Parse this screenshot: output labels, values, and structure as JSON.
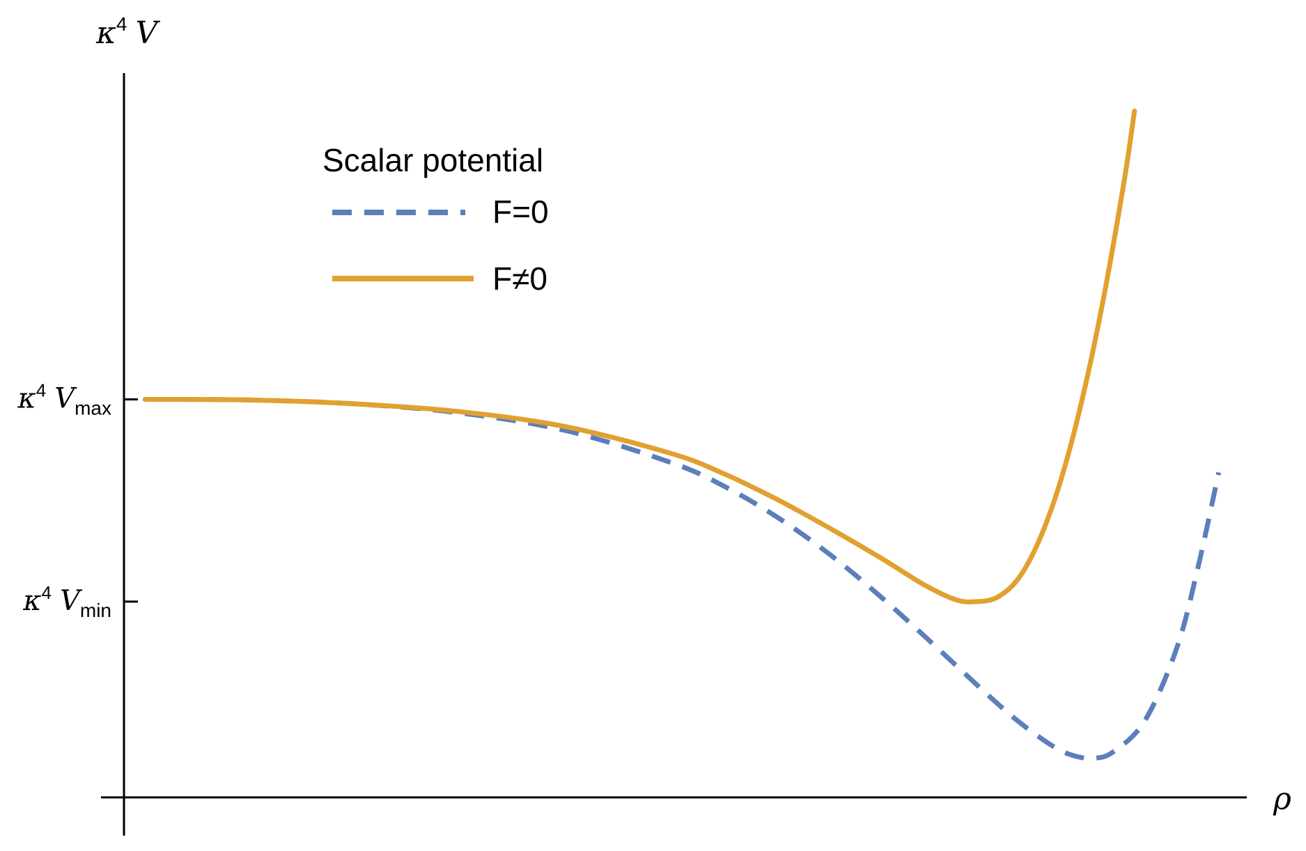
{
  "chart_data": {
    "type": "line",
    "ylabel": {
      "base": "κ",
      "sup": "4",
      "var": "V"
    },
    "xlabel": "ρ",
    "yticks": [
      {
        "base": "κ",
        "sup": "4",
        "var": "V",
        "sub": "max",
        "value": 0.55
      },
      {
        "base": "κ",
        "sup": "4",
        "var": "V",
        "sub": "min",
        "value": 0.24
      }
    ],
    "ylim": [
      -0.06,
      1.05
    ],
    "xlim": [
      -0.02,
      1.05
    ],
    "grid": false,
    "legend": {
      "title": "Scalar potential",
      "placement": "top-left",
      "entries": [
        {
          "label": "F=0",
          "style": "dashed",
          "color": "#5b7fbb"
        },
        {
          "label": "F≠0",
          "style": "solid",
          "color": "#e1a02f"
        }
      ]
    },
    "series": [
      {
        "name": "F=0",
        "color": "#5b7fbb",
        "dashed": true,
        "points": [
          [
            0.0,
            0.55
          ],
          [
            0.1,
            0.549
          ],
          [
            0.2,
            0.543
          ],
          [
            0.3,
            0.529
          ],
          [
            0.4,
            0.502
          ],
          [
            0.5,
            0.453
          ],
          [
            0.55,
            0.417
          ],
          [
            0.6,
            0.37
          ],
          [
            0.65,
            0.313
          ],
          [
            0.7,
            0.246
          ],
          [
            0.75,
            0.173
          ],
          [
            0.8,
            0.098
          ],
          [
            0.83,
            0.056
          ],
          [
            0.86,
            0.021
          ],
          [
            0.88,
            0.005
          ],
          [
            0.9,
            0.0
          ],
          [
            0.92,
            0.01
          ],
          [
            0.95,
            0.058
          ],
          [
            0.98,
            0.168
          ],
          [
            1.0,
            0.29
          ],
          [
            1.02,
            0.438
          ]
        ]
      },
      {
        "name": "F≠0",
        "color": "#e1a02f",
        "dashed": false,
        "points": [
          [
            0.0,
            0.55
          ],
          [
            0.1,
            0.549
          ],
          [
            0.2,
            0.543
          ],
          [
            0.3,
            0.531
          ],
          [
            0.4,
            0.508
          ],
          [
            0.5,
            0.467
          ],
          [
            0.55,
            0.436
          ],
          [
            0.6,
            0.397
          ],
          [
            0.65,
            0.353
          ],
          [
            0.7,
            0.306
          ],
          [
            0.74,
            0.266
          ],
          [
            0.77,
            0.243
          ],
          [
            0.79,
            0.24
          ],
          [
            0.81,
            0.247
          ],
          [
            0.83,
            0.276
          ],
          [
            0.85,
            0.336
          ],
          [
            0.87,
            0.426
          ],
          [
            0.89,
            0.548
          ],
          [
            0.91,
            0.7
          ],
          [
            0.93,
            0.883
          ],
          [
            0.94,
            0.992
          ]
        ]
      }
    ]
  }
}
